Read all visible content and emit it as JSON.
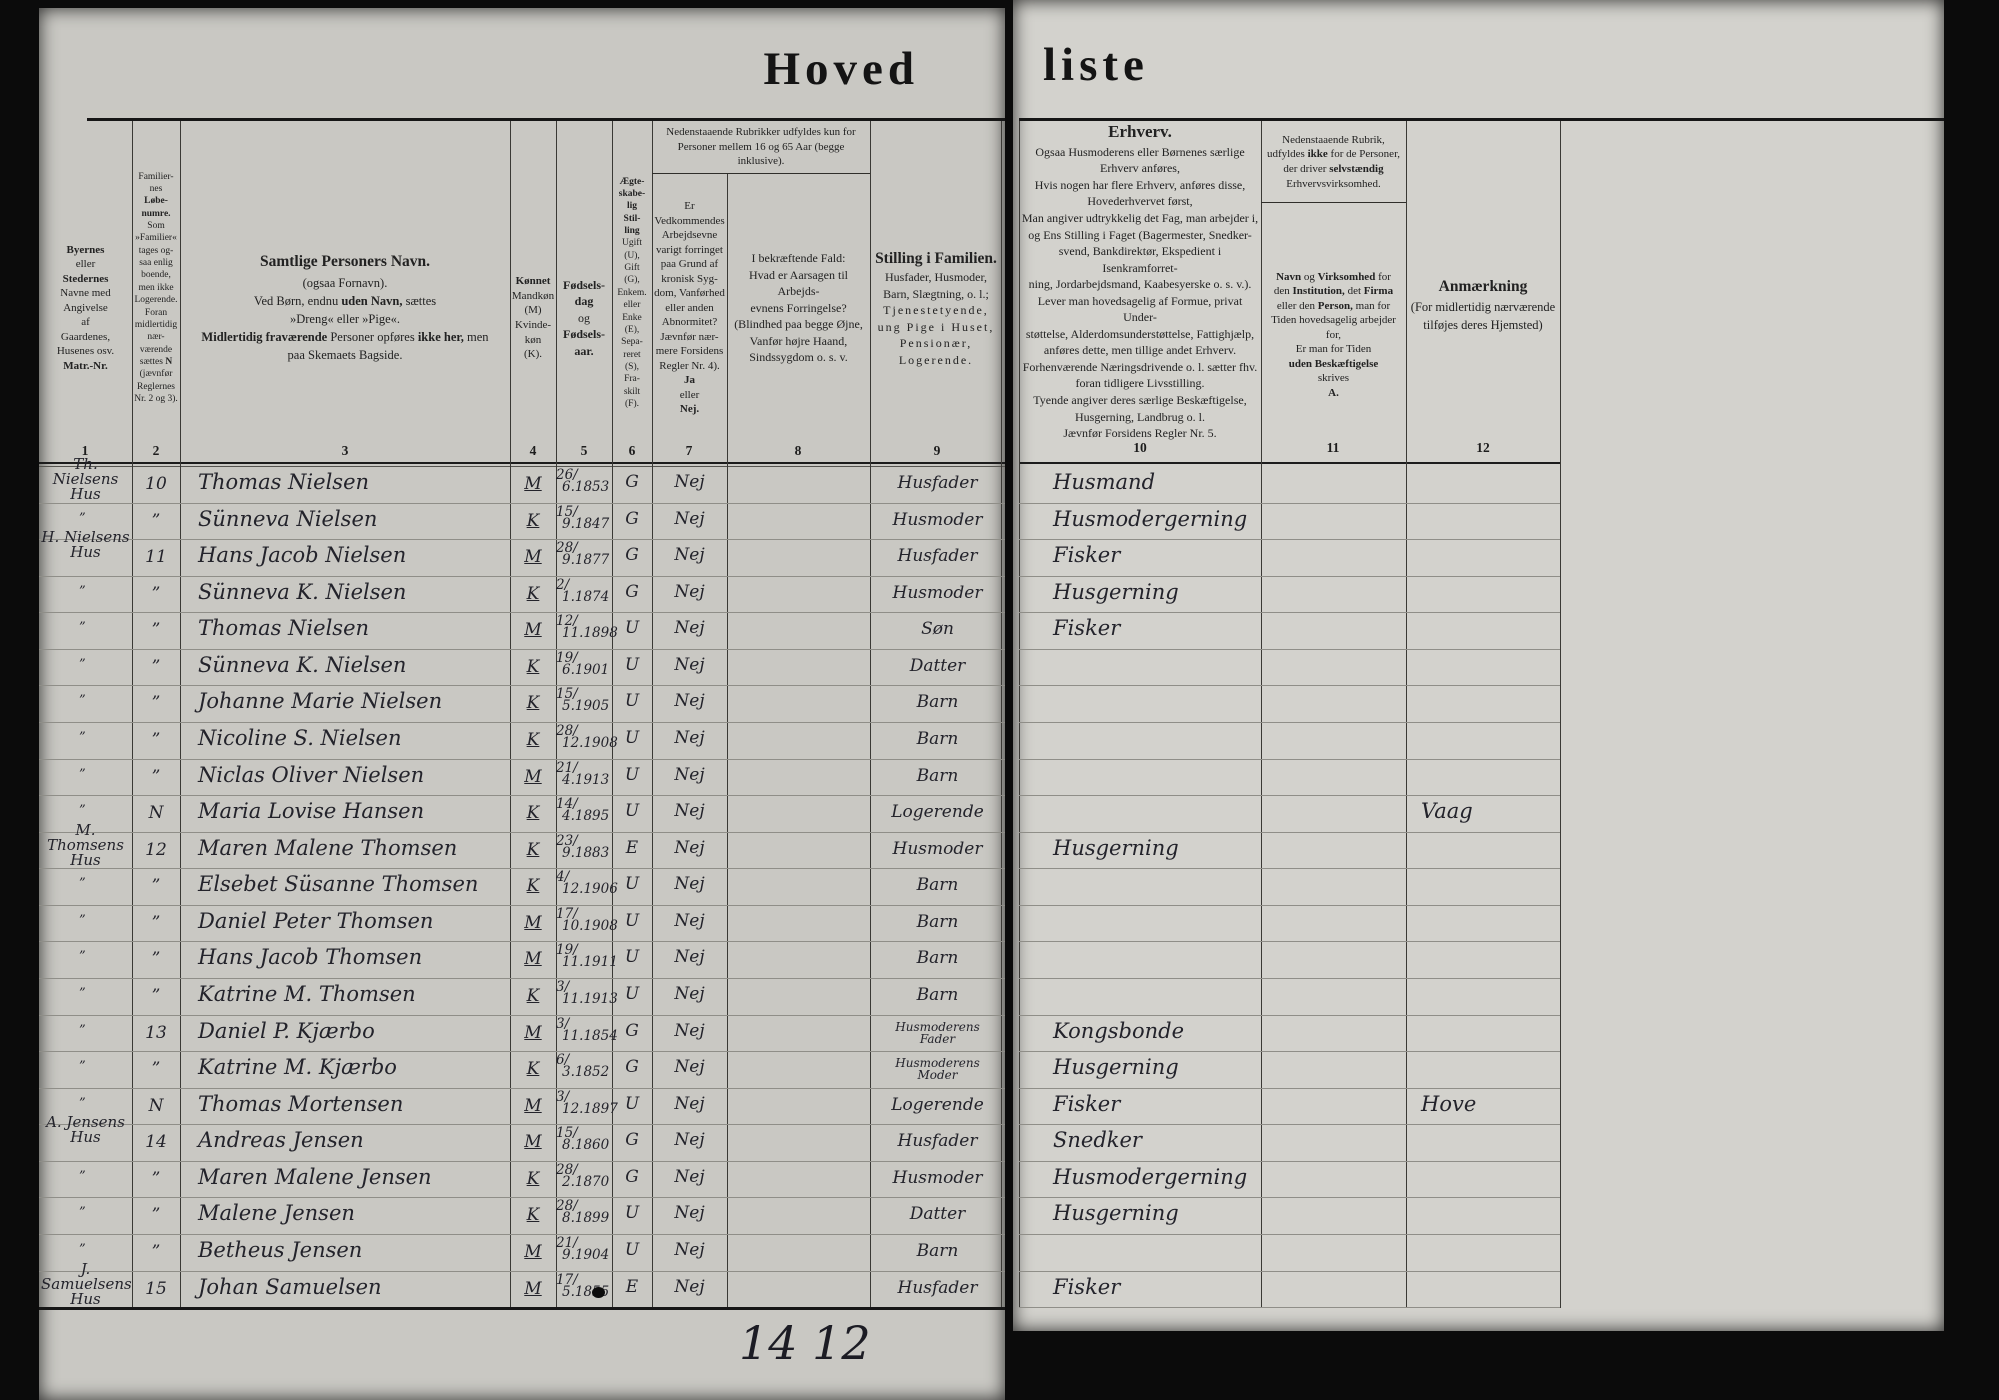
{
  "document": {
    "title_left": "Hoved",
    "title_right": "liste",
    "bottom_note": "14 12",
    "colors": {
      "paper_left": "#c9c8c3",
      "paper_right": "#d3d2cd",
      "ink": "#23232b",
      "background": "#0b0b0b"
    }
  },
  "left_header": {
    "col1_html": "<b>Byernes</b>\neller\n<b>Stedernes</b>\nNavne med\nAngivelse\naf\nGaardenes,\nHusenes osv.\n<b>Matr.-Nr.</b>",
    "col2_html": "Familier-\nnes\n<b>Løbe-\nnumre.</b>\nSom\n»Familier«\ntages og-\nsaa enlig\nboende,\nmen ikke\nLogerende.\nForan\nmidlertidig\nnær-\nværende\nsættes <b>N</b>\n(jævnfør\nReglernes\nNr. 2 og 3).",
    "col3_html": "<b class=\"lg\">Samtlige Personers Navn.</b>\n(ogsaa Fornavn).\nVed Børn, endnu <b>uden Navn,</b> sættes\n»Dreng« eller »Pige«.\n<b>Midlertidig fraværende</b> Personer opføres <b>ikke her,</b> men\npaa Skemaets Bagside.",
    "col4_html": "<b>Kønnet</b>\nMandkøn\n(M)\nKvinde-\nkøn\n(K).",
    "col5_html": "<b>Fødsels-\ndag</b>\nog\n<b>Fødsels-\naar.</b>",
    "col6_html": "<b>Ægte-\nskabe-\nlig\nStil-\nling</b>\nUgift\n(U),\nGift\n(G),\nEnkem.\neller\nEnke\n(E),\nSepa-\nreret\n(S),\nFra-\nskilt\n(F).",
    "col78_top_html": "Nedenstaaende Rubrikker udfyldes kun for\nPersoner mellem 16 og 65 Aar (begge inklusive).",
    "col7_html": "Er\nVedkommendes\nArbejdsevne\nvarigt forringet\npaa Grund af\nkronisk Syg-\ndom, Vanførhed\neller anden\nAbnormitet?\nJævnfør nær-\nmere Forsidens\nRegler Nr. 4).\n<b>Ja</b>\neller\n<b>Nej.</b>",
    "col8_html": "I bekræftende Fald:\nHvad er Aarsagen til Arbejds-\nevnens Forringelse?\n(Blindhed paa begge Øjne,\nVanfør højre Haand,\nSindssygdom o. s. v.",
    "col9_html": "<b class=\"lg\">Stilling i Familien.</b>\nHusfader, Husmoder,\nBarn, Slægtning, o. l.;\n<span class=\"sp\">Tjenestetyende,\nung Pige i Huset,\nPensionær,\nLogerende.</span>",
    "col_numbers": [
      "1",
      "2",
      "3",
      "4",
      "5",
      "6",
      "7",
      "8",
      "9"
    ]
  },
  "right_header": {
    "col10_html": "<b class=\"xl\">Erhverv.</b>\nOgsaa Husmoderens eller Børnenes særlige\nErhverv anføres,\nHvis nogen har flere Erhverv, anføres disse,\nHovederhvervet først,\nMan angiver udtrykkelig det Fag, man arbejder i,\nog Ens Stilling i Faget (Bagermester, Snedker-\nsvend, Bankdirektør, Ekspedient i Isenkramforret-\nning, Jordarbejdsmand, Kaabesyerske o. s. v.).\nLever man hovedsagelig af Formue, privat Under-\nstøttelse, Alderdomsunderstøttelse, Fattighjælp,\nanføres dette, men tillige andet Erhverv.\nForhenværende Næringsdrivende o. l. sætter fhv.\nforan tidligere Livsstilling.\nTyende angiver deres særlige Beskæftigelse,\nHusgerning, Landbrug o. l.\nJævnfør Forsidens Regler Nr. 5.",
    "col11_top_html": "Nedenstaaende Rubrik,\nudfyldes <b>ikke</b> for de Personer,\nder driver <b>selvstændig</b>\nErhvervsvirksomhed.",
    "col11_bottom_html": "<b>Navn</b> og <b>Virksomhed</b> for\nden <b>Institution,</b> det <b>Firma</b>\neller den <b>Person,</b> man for\nTiden hovedsagelig arbejder\nfor,\nEr man for Tiden\n<b>uden Beskæftigelse</b>\nskrives\n<b>A.</b>",
    "col12_html": "<b class=\"lg\">Anmærkning</b>\n(For midlertidig nærværende\ntilføjes deres Hjemsted)",
    "col_numbers": [
      "10",
      "11",
      "12"
    ]
  },
  "rows": [
    {
      "place": "Th. Nielsens\nHus",
      "num": "10",
      "name": "Thomas Nielsen",
      "sex": "M",
      "day": "26/",
      "my": "6.1853",
      "marital": "G",
      "able": "Nej",
      "family": "Husfader",
      "family2": "",
      "occupation": "Husmand",
      "employer": "",
      "remark": ""
    },
    {
      "place": "”",
      "num": "”",
      "name": "Sünneva Nielsen",
      "sex": "K",
      "day": "15/",
      "my": "9.1847",
      "marital": "G",
      "able": "Nej",
      "family": "Husmoder",
      "family2": "",
      "occupation": "Husmodergerning",
      "employer": "",
      "remark": ""
    },
    {
      "place": "H. Nielsens\nHus",
      "num": "11",
      "name": "Hans Jacob Nielsen",
      "sex": "M",
      "day": "28/",
      "my": "9.1877",
      "marital": "G",
      "able": "Nej",
      "family": "Husfader",
      "family2": "",
      "occupation": "Fisker",
      "employer": "",
      "remark": ""
    },
    {
      "place": "”",
      "num": "”",
      "name": "Sünneva K. Nielsen",
      "sex": "K",
      "day": "2/",
      "my": "1.1874",
      "marital": "G",
      "able": "Nej",
      "family": "Husmoder",
      "family2": "",
      "occupation": "Husgerning",
      "employer": "",
      "remark": ""
    },
    {
      "place": "”",
      "num": "”",
      "name": "Thomas Nielsen",
      "sex": "M",
      "day": "12/",
      "my": "11.1898",
      "marital": "U",
      "able": "Nej",
      "family": "Søn",
      "family2": "",
      "occupation": "Fisker",
      "employer": "",
      "remark": ""
    },
    {
      "place": "”",
      "num": "”",
      "name": "Sünneva K. Nielsen",
      "sex": "K",
      "day": "19/",
      "my": "6.1901",
      "marital": "U",
      "able": "Nej",
      "family": "Datter",
      "family2": "",
      "occupation": "",
      "employer": "",
      "remark": ""
    },
    {
      "place": "”",
      "num": "”",
      "name": "Johanne Marie Nielsen",
      "sex": "K",
      "day": "15/",
      "my": "5.1905",
      "marital": "U",
      "able": "Nej",
      "family": "Barn",
      "family2": "",
      "occupation": "",
      "employer": "",
      "remark": ""
    },
    {
      "place": "”",
      "num": "”",
      "name": "Nicoline S. Nielsen",
      "sex": "K",
      "day": "28/",
      "my": "12.1908",
      "marital": "U",
      "able": "Nej",
      "family": "Barn",
      "family2": "",
      "occupation": "",
      "employer": "",
      "remark": ""
    },
    {
      "place": "”",
      "num": "”",
      "name": "Niclas Oliver Nielsen",
      "sex": "M",
      "day": "21/",
      "my": "4.1913",
      "marital": "U",
      "able": "Nej",
      "family": "Barn",
      "family2": "",
      "occupation": "",
      "employer": "",
      "remark": ""
    },
    {
      "place": "”",
      "num": "N",
      "name": "Maria Lovise Hansen",
      "sex": "K",
      "day": "14/",
      "my": "4.1895",
      "marital": "U",
      "able": "Nej",
      "family": "Logerende",
      "family2": "",
      "occupation": "",
      "employer": "",
      "remark": "Vaag"
    },
    {
      "place": "M. Thomsens\nHus",
      "num": "12",
      "name": "Maren Malene Thomsen",
      "sex": "K",
      "day": "23/",
      "my": "9.1883",
      "marital": "E",
      "able": "Nej",
      "family": "Husmoder",
      "family2": "",
      "occupation": "Husgerning",
      "employer": "",
      "remark": ""
    },
    {
      "place": "”",
      "num": "”",
      "name": "Elsebet Süsanne Thomsen",
      "sex": "K",
      "day": "4/",
      "my": "12.1906",
      "marital": "U",
      "able": "Nej",
      "family": "Barn",
      "family2": "",
      "occupation": "",
      "employer": "",
      "remark": ""
    },
    {
      "place": "”",
      "num": "”",
      "name": "Daniel Peter Thomsen",
      "sex": "M",
      "day": "17/",
      "my": "10.1908",
      "marital": "U",
      "able": "Nej",
      "family": "Barn",
      "family2": "",
      "occupation": "",
      "employer": "",
      "remark": ""
    },
    {
      "place": "”",
      "num": "”",
      "name": "Hans Jacob Thomsen",
      "sex": "M",
      "day": "19/",
      "my": "11.1911",
      "marital": "U",
      "able": "Nej",
      "family": "Barn",
      "family2": "",
      "occupation": "",
      "employer": "",
      "remark": ""
    },
    {
      "place": "”",
      "num": "”",
      "name": "Katrine M. Thomsen",
      "sex": "K",
      "day": "3/",
      "my": "11.1913",
      "marital": "U",
      "able": "Nej",
      "family": "Barn",
      "family2": "",
      "occupation": "",
      "employer": "",
      "remark": ""
    },
    {
      "place": "”",
      "num": "13",
      "name": "Daniel P. Kjærbo",
      "sex": "M",
      "day": "3/",
      "my": "11.1854",
      "marital": "G",
      "able": "Nej",
      "family": "Husmoderens",
      "family2": "Fader",
      "occupation": "Kongsbonde",
      "employer": "",
      "remark": ""
    },
    {
      "place": "”",
      "num": "”",
      "name": "Katrine M. Kjærbo",
      "sex": "K",
      "day": "6/",
      "my": "3.1852",
      "marital": "G",
      "able": "Nej",
      "family": "Husmoderens",
      "family2": "Moder",
      "occupation": "Husgerning",
      "employer": "",
      "remark": ""
    },
    {
      "place": "”",
      "num": "N",
      "name": "Thomas Mortensen",
      "sex": "M",
      "day": "3/",
      "my": "12.1897",
      "marital": "U",
      "able": "Nej",
      "family": "Logerende",
      "family2": "",
      "occupation": "Fisker",
      "employer": "",
      "remark": "Hove"
    },
    {
      "place": "A. Jensens\nHus",
      "num": "14",
      "name": "Andreas Jensen",
      "sex": "M",
      "day": "15/",
      "my": "8.1860",
      "marital": "G",
      "able": "Nej",
      "family": "Husfader",
      "family2": "",
      "occupation": "Snedker",
      "employer": "",
      "remark": ""
    },
    {
      "place": "”",
      "num": "”",
      "name": "Maren Malene Jensen",
      "sex": "K",
      "day": "28/",
      "my": "2.1870",
      "marital": "G",
      "able": "Nej",
      "family": "Husmoder",
      "family2": "",
      "occupation": "Husmodergerning",
      "employer": "",
      "remark": ""
    },
    {
      "place": "”",
      "num": "”",
      "name": "Malene Jensen",
      "sex": "K",
      "day": "28/",
      "my": "8.1899",
      "marital": "U",
      "able": "Nej",
      "family": "Datter",
      "family2": "",
      "occupation": "Husgerning",
      "employer": "",
      "remark": ""
    },
    {
      "place": "”",
      "num": "”",
      "name": "Betheus Jensen",
      "sex": "M",
      "day": "21/",
      "my": "9.1904",
      "marital": "U",
      "able": "Nej",
      "family": "Barn",
      "family2": "",
      "occupation": "",
      "employer": "",
      "remark": ""
    },
    {
      "place": "J. Samuelsens\nHus",
      "num": "15",
      "name": "Johan Samuelsen",
      "sex": "M",
      "day": "17/",
      "my": "5.1855",
      "marital": "E",
      "able": "Nej",
      "family": "Husfader",
      "family2": "",
      "occupation": "Fisker",
      "employer": "",
      "remark": "",
      "blot": true
    }
  ]
}
